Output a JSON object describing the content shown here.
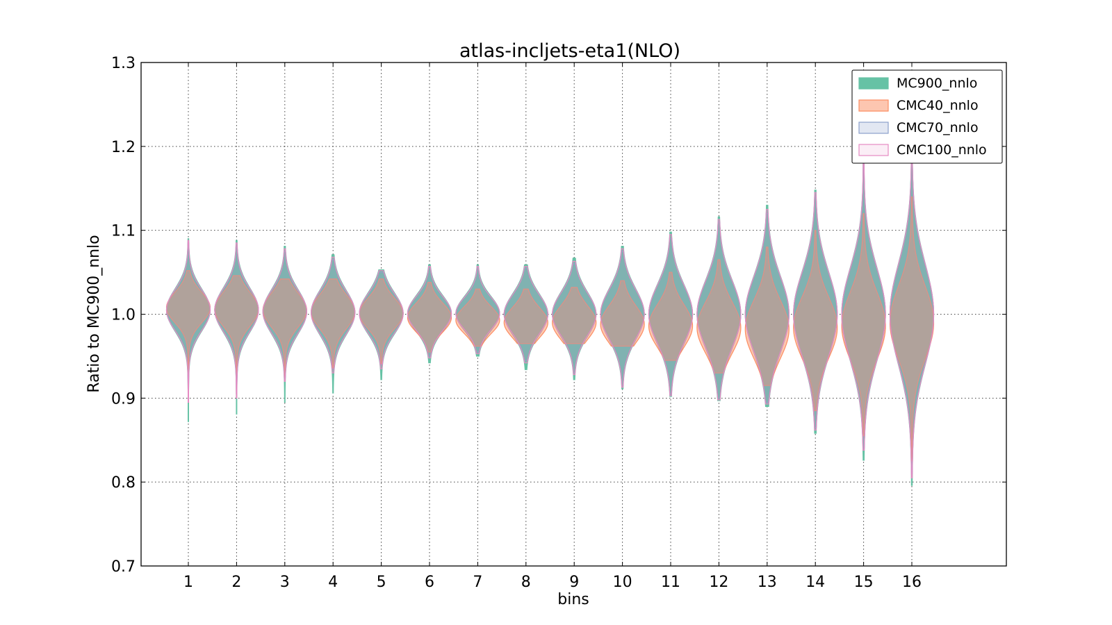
{
  "chart_data": {
    "type": "violin",
    "title": "atlas-incljets-eta1(NLO)",
    "xlabel": "bins",
    "ylabel": "Ratio to MC900_nnlo",
    "ylim": [
      0.7,
      1.3
    ],
    "yticks": [
      "0.7",
      "0.8",
      "0.9",
      "1.0",
      "1.1",
      "1.2",
      "1.3"
    ],
    "categories": [
      "1",
      "2",
      "3",
      "4",
      "5",
      "6",
      "7",
      "8",
      "9",
      "10",
      "11",
      "12",
      "13",
      "14",
      "15",
      "16"
    ],
    "grid": true,
    "legend_position": "top-right",
    "series": [
      {
        "name": "MC900_nnlo",
        "fill": "#66c2a5",
        "stroke": "#66c2a5",
        "fill_opacity": 1.0,
        "center": [
          1.005,
          1.005,
          1.003,
          1.002,
          1.001,
          1.001,
          1.001,
          1.0,
          1.0,
          1.0,
          1.0,
          1.0,
          1.0,
          1.0,
          1.0,
          1.0
        ],
        "min": [
          0.872,
          0.881,
          0.895,
          0.906,
          0.922,
          0.942,
          0.95,
          0.934,
          0.922,
          0.911,
          0.902,
          0.897,
          0.89,
          0.858,
          0.826,
          0.796
        ],
        "max": [
          1.09,
          1.088,
          1.081,
          1.071,
          1.053,
          1.059,
          1.059,
          1.059,
          1.067,
          1.081,
          1.098,
          1.116,
          1.13,
          1.148,
          1.19,
          1.225
        ],
        "spread": [
          0.025,
          0.026,
          0.026,
          0.026,
          0.024,
          0.021,
          0.02,
          0.024,
          0.026,
          0.03,
          0.035,
          0.04,
          0.045,
          0.05,
          0.055,
          0.06
        ]
      },
      {
        "name": "CMC40_nnlo",
        "fill": "#fc8d62",
        "stroke": "#fc8d62",
        "fill_opacity": 0.5,
        "center": [
          1.008,
          1.006,
          1.005,
          1.003,
          1.001,
          0.996,
          0.993,
          0.99,
          0.99,
          0.988,
          0.986,
          0.984,
          0.982,
          0.984,
          0.986,
          0.99
        ],
        "min": [
          0.9,
          0.905,
          0.925,
          0.935,
          0.94,
          0.955,
          0.962,
          0.965,
          0.965,
          0.962,
          0.945,
          0.93,
          0.915,
          0.885,
          0.855,
          0.825
        ],
        "max": [
          1.052,
          1.046,
          1.042,
          1.042,
          1.042,
          1.038,
          1.03,
          1.03,
          1.032,
          1.04,
          1.05,
          1.065,
          1.08,
          1.1,
          1.12,
          1.14
        ],
        "spread": [
          0.018,
          0.02,
          0.02,
          0.02,
          0.018,
          0.017,
          0.016,
          0.018,
          0.02,
          0.022,
          0.025,
          0.03,
          0.034,
          0.036,
          0.04,
          0.043
        ]
      },
      {
        "name": "CMC70_nnlo",
        "fill": "#8da0cb",
        "stroke": "#8da0cb",
        "fill_opacity": 0.25,
        "center": [
          1.005,
          1.005,
          1.003,
          1.002,
          1.001,
          1.001,
          1.001,
          1.0,
          1.0,
          1.0,
          1.0,
          1.0,
          1.0,
          1.0,
          1.0,
          1.0
        ],
        "min": [
          0.9,
          0.905,
          0.925,
          0.935,
          0.94,
          0.95,
          0.955,
          0.945,
          0.93,
          0.915,
          0.905,
          0.9,
          0.895,
          0.865,
          0.84,
          0.81
        ],
        "max": [
          1.085,
          1.08,
          1.075,
          1.065,
          1.05,
          1.055,
          1.055,
          1.055,
          1.06,
          1.075,
          1.09,
          1.11,
          1.12,
          1.14,
          1.18,
          1.215
        ],
        "spread": [
          0.024,
          0.025,
          0.025,
          0.025,
          0.023,
          0.02,
          0.019,
          0.023,
          0.025,
          0.029,
          0.034,
          0.039,
          0.044,
          0.049,
          0.054,
          0.059
        ]
      },
      {
        "name": "CMC100_nnlo",
        "fill": "#e78ac3",
        "stroke": "#e78ac3",
        "fill_opacity": 0.15,
        "center": [
          1.005,
          1.005,
          1.003,
          1.002,
          1.001,
          1.001,
          1.001,
          1.0,
          1.0,
          1.0,
          1.0,
          1.0,
          1.0,
          1.0,
          1.0,
          1.0
        ],
        "min": [
          0.895,
          0.9,
          0.92,
          0.93,
          0.935,
          0.948,
          0.953,
          0.942,
          0.928,
          0.913,
          0.903,
          0.898,
          0.893,
          0.862,
          0.838,
          0.805
        ],
        "max": [
          1.088,
          1.085,
          1.078,
          1.068,
          1.052,
          1.057,
          1.057,
          1.057,
          1.063,
          1.078,
          1.095,
          1.113,
          1.125,
          1.145,
          1.185,
          1.22
        ],
        "spread": [
          0.024,
          0.025,
          0.025,
          0.025,
          0.023,
          0.02,
          0.019,
          0.023,
          0.025,
          0.029,
          0.034,
          0.039,
          0.044,
          0.049,
          0.054,
          0.059
        ]
      }
    ]
  }
}
